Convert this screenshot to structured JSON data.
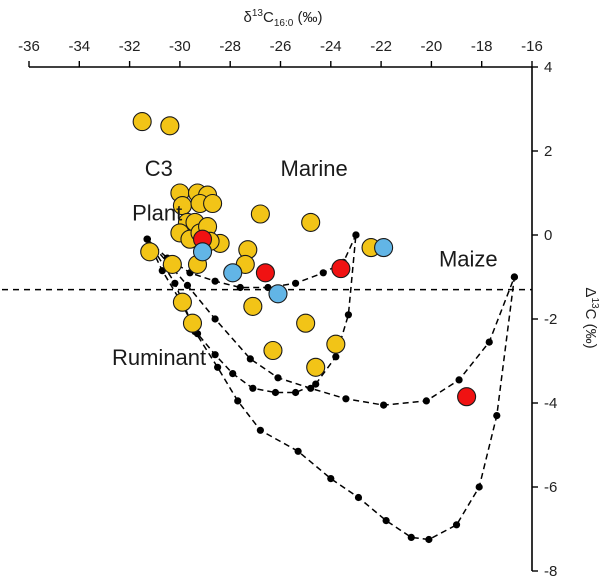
{
  "chart_data": {
    "type": "scatter",
    "x_axis": {
      "label_main": "δ",
      "label_sup": "13",
      "label_rest": "C",
      "label_sub": "16:0",
      "label_unit": " (‰)",
      "range": [
        -36,
        -16
      ],
      "ticks": [
        -36,
        -34,
        -32,
        -30,
        -28,
        -26,
        -24,
        -22,
        -20,
        -18,
        -16
      ],
      "position": "top"
    },
    "y_axis": {
      "label_main": "Δ",
      "label_sup": "13",
      "label_rest": "C (‰)",
      "range": [
        -8,
        4
      ],
      "ticks": [
        4,
        2,
        0,
        -2,
        -4,
        -6,
        -8
      ],
      "position": "right"
    },
    "reference_line": {
      "y": -1.3,
      "style": "dashed"
    },
    "annotations": [
      {
        "id": "c3",
        "text": "C3",
        "x": -31.4,
        "y": 1.4
      },
      {
        "id": "plant",
        "text": "Plant",
        "x": -31.9,
        "y": 0.35
      },
      {
        "id": "marine",
        "text": "Marine",
        "x": -26.0,
        "y": 1.4
      },
      {
        "id": "maize",
        "text": "Maize",
        "x": -19.7,
        "y": -0.75
      },
      {
        "id": "ruminant",
        "text": "Ruminant",
        "x": -32.7,
        "y": -3.1
      }
    ],
    "mixing_curves": [
      {
        "name": "",
        "points": [
          [
            -31.3,
            -0.1
          ],
          [
            -30.5,
            -0.55
          ],
          [
            -29.6,
            -0.9
          ],
          [
            -28.6,
            -1.1
          ],
          [
            -27.6,
            -1.25
          ],
          [
            -26.5,
            -1.25
          ],
          [
            -25.4,
            -1.15
          ],
          [
            -24.3,
            -0.9
          ],
          [
            -23.5,
            -0.65
          ],
          [
            -23.0,
            0.0
          ]
        ]
      },
      {
        "name": "",
        "points": [
          [
            -31.3,
            -0.1
          ],
          [
            -30.7,
            -0.85
          ],
          [
            -30.0,
            -1.55
          ],
          [
            -29.3,
            -2.35
          ],
          [
            -28.6,
            -2.85
          ],
          [
            -27.9,
            -3.3
          ],
          [
            -27.1,
            -3.65
          ],
          [
            -26.2,
            -3.75
          ],
          [
            -25.4,
            -3.75
          ],
          [
            -24.6,
            -3.55
          ],
          [
            -23.8,
            -2.9
          ],
          [
            -23.3,
            -1.9
          ],
          [
            -23.0,
            0.0
          ]
        ]
      },
      {
        "name": "",
        "points": [
          [
            -31.3,
            -0.1
          ],
          [
            -29.7,
            -1.2
          ],
          [
            -28.6,
            -2.0
          ],
          [
            -27.2,
            -2.95
          ],
          [
            -26.1,
            -3.4
          ],
          [
            -24.8,
            -3.65
          ],
          [
            -23.4,
            -3.9
          ],
          [
            -21.9,
            -4.05
          ],
          [
            -20.2,
            -3.95
          ],
          [
            -18.9,
            -3.45
          ],
          [
            -17.7,
            -2.55
          ],
          [
            -16.7,
            -1.0
          ]
        ]
      },
      {
        "name": "",
        "points": [
          [
            -31.3,
            -0.1
          ],
          [
            -30.2,
            -1.15
          ],
          [
            -29.4,
            -2.3
          ],
          [
            -28.5,
            -3.15
          ],
          [
            -27.7,
            -3.95
          ],
          [
            -26.8,
            -4.65
          ],
          [
            -25.3,
            -5.15
          ],
          [
            -24.0,
            -5.8
          ],
          [
            -22.9,
            -6.25
          ],
          [
            -21.8,
            -6.8
          ],
          [
            -20.8,
            -7.2
          ],
          [
            -20.1,
            -7.25
          ],
          [
            -19.0,
            -6.9
          ],
          [
            -18.1,
            -6.0
          ],
          [
            -17.4,
            -4.3
          ],
          [
            -16.7,
            -1.0
          ]
        ]
      }
    ],
    "series": [
      {
        "name": "",
        "color": "#f2c417",
        "points": [
          [
            -31.5,
            2.7
          ],
          [
            -30.4,
            2.6
          ],
          [
            -30.0,
            1.0
          ],
          [
            -29.3,
            1.0
          ],
          [
            -28.9,
            0.95
          ],
          [
            -29.9,
            0.7
          ],
          [
            -29.2,
            0.75
          ],
          [
            -28.7,
            0.75
          ],
          [
            -29.7,
            0.3
          ],
          [
            -29.4,
            0.3
          ],
          [
            -30.0,
            0.05
          ],
          [
            -29.6,
            -0.1
          ],
          [
            -29.2,
            0.05
          ],
          [
            -28.9,
            0.2
          ],
          [
            -28.4,
            -0.2
          ],
          [
            -28.8,
            -0.15
          ],
          [
            -29.3,
            -0.7
          ],
          [
            -30.3,
            -0.7
          ],
          [
            -31.2,
            -0.4
          ],
          [
            -27.3,
            -0.35
          ],
          [
            -27.4,
            -0.7
          ],
          [
            -26.8,
            0.5
          ],
          [
            -24.8,
            0.3
          ],
          [
            -22.4,
            -0.3
          ],
          [
            -29.9,
            -1.6
          ],
          [
            -29.5,
            -2.1
          ],
          [
            -27.1,
            -1.7
          ],
          [
            -25.0,
            -2.1
          ],
          [
            -26.3,
            -2.75
          ],
          [
            -24.6,
            -3.15
          ],
          [
            -23.8,
            -2.6
          ]
        ]
      },
      {
        "name": "",
        "color": "#f01212",
        "points": [
          [
            -29.1,
            -0.1
          ],
          [
            -26.6,
            -0.9
          ],
          [
            -23.6,
            -0.8
          ],
          [
            -18.6,
            -3.85
          ]
        ]
      },
      {
        "name": "",
        "color": "#62b5e6",
        "points": [
          [
            -29.1,
            -0.4
          ],
          [
            -27.9,
            -0.9
          ],
          [
            -26.1,
            -1.4
          ],
          [
            -21.9,
            -0.3
          ]
        ]
      }
    ]
  }
}
